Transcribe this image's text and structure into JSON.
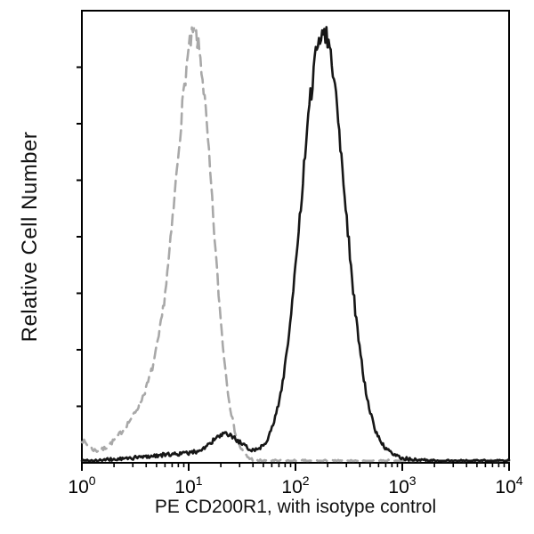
{
  "figure": {
    "background": "#ffffff",
    "frame_color": "#000000"
  },
  "chart_data": {
    "type": "histogram",
    "subtype": "flow-cytometry-overlay",
    "title": "",
    "xlabel": "PE CD200R1, with isotype control",
    "ylabel": "Relative Cell Number",
    "x_scale": "log10",
    "x_range_log10": [
      0,
      4
    ],
    "x_major_ticks": [
      {
        "log10": 0,
        "base": "10",
        "exp": "0"
      },
      {
        "log10": 1,
        "base": "10",
        "exp": "1"
      },
      {
        "log10": 2,
        "base": "10",
        "exp": "2"
      },
      {
        "log10": 3,
        "base": "10",
        "exp": "3"
      },
      {
        "log10": 4,
        "base": "10",
        "exp": "4"
      }
    ],
    "x_minor_ticks_per_decade": [
      2,
      3,
      4,
      5,
      6,
      7,
      8,
      9
    ],
    "y_axis": {
      "tick_count": 7,
      "labels": [],
      "range_normalized": [
        0,
        1
      ]
    },
    "legend_position": "none",
    "grid": false,
    "series": [
      {
        "name": "Isotype control",
        "style": "dashed",
        "color": "#a8a8a8",
        "line_width": 2.6,
        "dash": [
          12,
          7
        ],
        "noise_seed": 7,
        "noise": 0.02,
        "peak_x": 12,
        "peak_height": 0.95,
        "components": [
          {
            "center_log10": 1.07,
            "sigma_log10": 0.16,
            "amplitude": 0.82
          },
          {
            "center_log10": 0.85,
            "sigma_log10": 0.22,
            "amplitude": 0.22
          },
          {
            "center_log10": 0.45,
            "sigma_log10": 0.2,
            "amplitude": 0.05
          },
          {
            "center_log10": -0.05,
            "sigma_log10": 0.1,
            "amplitude": 0.05
          }
        ]
      },
      {
        "name": "PE CD200R1",
        "style": "solid",
        "color": "#161616",
        "line_width": 2.6,
        "dash": [],
        "noise_seed": 99,
        "noise": 0.025,
        "peak_x": 180,
        "peak_height": 0.97,
        "components": [
          {
            "center_log10": 2.26,
            "sigma_log10": 0.2,
            "amplitude": 0.91
          },
          {
            "center_log10": 2.3,
            "sigma_log10": 0.34,
            "amplitude": 0.06
          },
          {
            "center_log10": 1.35,
            "sigma_log10": 0.13,
            "amplitude": 0.045
          },
          {
            "center_log10": 1.05,
            "sigma_log10": 0.45,
            "amplitude": 0.018
          }
        ]
      }
    ]
  }
}
